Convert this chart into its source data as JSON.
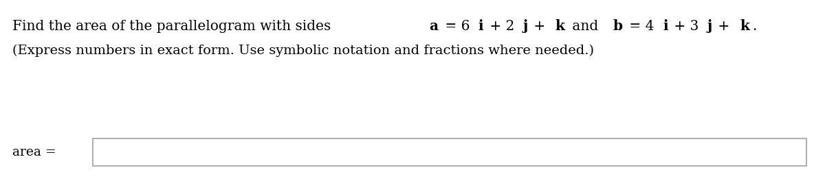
{
  "segments_line1": [
    [
      "Find the area of the parallelogram with sides ",
      false
    ],
    [
      "a",
      true
    ],
    [
      " = 6",
      false
    ],
    [
      "i",
      true
    ],
    [
      " + 2",
      false
    ],
    [
      "j",
      true
    ],
    [
      " + ",
      false
    ],
    [
      "k",
      true
    ],
    [
      " and ",
      false
    ],
    [
      "b",
      true
    ],
    [
      " = 4",
      false
    ],
    [
      "i",
      true
    ],
    [
      " + 3",
      false
    ],
    [
      "j",
      true
    ],
    [
      " + ",
      false
    ],
    [
      "k",
      true
    ],
    [
      ".",
      false
    ]
  ],
  "line2": "(Express numbers in exact form. Use symbolic notation and fractions where needed.)",
  "label": "area =",
  "bg_color": "#ffffff",
  "text_color": "#000000",
  "font_size_line1": 14.5,
  "font_size_line2": 14,
  "font_size_label": 13.5,
  "box_facecolor": "#ffffff",
  "box_edgecolor": "#b0b0b0"
}
